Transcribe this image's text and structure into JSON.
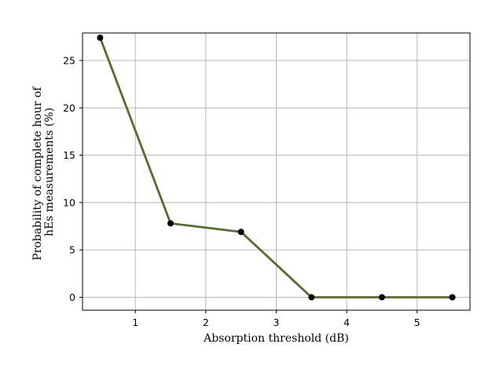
{
  "chart_data": {
    "type": "line",
    "title": "",
    "xlabel": "Absorption threshold (dB)",
    "ylabel_lines": [
      "Probability of complete hour of",
      "hEs measurements (%)"
    ],
    "xlim": [
      0.25,
      5.75
    ],
    "ylim": [
      -1.37,
      27.9
    ],
    "xticks": [
      1,
      2,
      3,
      4,
      5
    ],
    "yticks": [
      0,
      5,
      10,
      15,
      20,
      25
    ],
    "grid": true,
    "series": [
      {
        "x": [
          0.5,
          1.5,
          2.5,
          3.5,
          4.5,
          5.5
        ],
        "y": [
          27.4,
          7.8,
          6.9,
          0.0,
          0.0,
          0.0
        ],
        "line_color": "#556b2f",
        "marker_color": "#000000"
      }
    ]
  }
}
